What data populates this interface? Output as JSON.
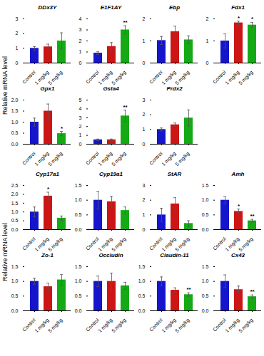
{
  "chart_data": [
    {
      "type": "bar",
      "title": "DDx3Y",
      "ylabel": "Relative mRNA level",
      "categories": [
        "Control",
        "1 mg/kg",
        "5 mg/kg"
      ],
      "values": [
        1.0,
        1.1,
        1.5
      ],
      "errors": [
        0.12,
        0.18,
        0.55
      ],
      "colors": [
        "#1515cc",
        "#cc1515",
        "#15aa15"
      ],
      "ylim": [
        0,
        3
      ],
      "yticks": [
        0,
        1,
        2,
        3
      ],
      "annotations": []
    },
    {
      "type": "bar",
      "title": "E1F1AY",
      "categories": [
        "Control",
        "1 mg/kg",
        "5 mg/kg"
      ],
      "values": [
        0.9,
        1.5,
        3.0
      ],
      "errors": [
        0.12,
        0.35,
        0.38
      ],
      "colors": [
        "#1515cc",
        "#cc1515",
        "#15aa15"
      ],
      "ylim": [
        0,
        4
      ],
      "yticks": [
        0,
        1,
        2,
        3,
        4
      ],
      "annotations": [
        {
          "category": "5 mg/kg",
          "text": "**"
        }
      ]
    },
    {
      "type": "bar",
      "title": "Ebp",
      "categories": [
        "Control",
        "1 mg/kg",
        "5 mg/kg"
      ],
      "values": [
        1.02,
        1.42,
        1.05
      ],
      "errors": [
        0.18,
        0.25,
        0.18
      ],
      "colors": [
        "#1515cc",
        "#cc1515",
        "#15aa15"
      ],
      "ylim": [
        0,
        2
      ],
      "yticks": [
        0,
        1,
        2
      ],
      "annotations": []
    },
    {
      "type": "bar",
      "title": "Fdx1",
      "categories": [
        "Control",
        "1 mg/kg",
        "5 mg/kg"
      ],
      "values": [
        1.0,
        1.82,
        1.72
      ],
      "errors": [
        0.32,
        0.08,
        0.12
      ],
      "colors": [
        "#1515cc",
        "#cc1515",
        "#15aa15"
      ],
      "ylim": [
        0,
        2
      ],
      "yticks": [
        0,
        1,
        2
      ],
      "annotations": [
        {
          "category": "1 mg/kg",
          "text": "*"
        },
        {
          "category": "5 mg/kg",
          "text": "*"
        }
      ]
    },
    {
      "type": "bar",
      "title": "Gpx1",
      "categories": [
        "Control",
        "1 mg/kg",
        "5 mg/kg"
      ],
      "values": [
        1.0,
        1.5,
        0.48
      ],
      "errors": [
        0.18,
        0.32,
        0.1
      ],
      "colors": [
        "#1515cc",
        "#cc1515",
        "#15aa15"
      ],
      "ylim": [
        0,
        2
      ],
      "yticks": [
        {
          "value": 0,
          "label": "0.0"
        },
        0.5,
        {
          "value": 1.0,
          "label": "1.0"
        },
        1.5,
        {
          "value": 2.0,
          "label": "2.0"
        }
      ],
      "annotations": [
        {
          "category": "5 mg/kg",
          "text": "*"
        }
      ]
    },
    {
      "type": "bar",
      "title": "Gsta4",
      "categories": [
        "Control",
        "1 mg/kg",
        "5 mg/kg"
      ],
      "values": [
        0.5,
        0.5,
        3.2
      ],
      "errors": [
        0.08,
        0.08,
        0.65
      ],
      "colors": [
        "#1515cc",
        "#cc1515",
        "#15aa15"
      ],
      "ylim": [
        0,
        5
      ],
      "yticks": [
        0,
        1,
        2,
        3,
        4,
        5
      ],
      "annotations": [
        {
          "category": "5 mg/kg",
          "text": "**"
        }
      ]
    },
    {
      "type": "bar",
      "title": "Prdx2",
      "categories": [
        "Control",
        "1 mg/kg",
        "5 mg/kg"
      ],
      "values": [
        1.0,
        1.32,
        1.78
      ],
      "errors": [
        0.1,
        0.12,
        0.55
      ],
      "colors": [
        "#1515cc",
        "#cc1515",
        "#15aa15"
      ],
      "ylim": [
        0,
        3
      ],
      "yticks": [
        0,
        1,
        2,
        3
      ],
      "annotations": []
    },
    {
      "type": "bar",
      "title": "Cyp17a1",
      "ylabel": "Relative mRNA level",
      "categories": [
        "Control",
        "1 mg/kg",
        "5 mg/kg"
      ],
      "values": [
        1.0,
        1.9,
        0.65
      ],
      "errors": [
        0.28,
        0.22,
        0.12
      ],
      "colors": [
        "#1515cc",
        "#cc1515",
        "#15aa15"
      ],
      "ylim": [
        0,
        2.5
      ],
      "yticks": [
        {
          "value": 0,
          "label": "0.0"
        },
        0.5,
        {
          "value": 1.0,
          "label": "1.0"
        },
        1.5,
        {
          "value": 2.0,
          "label": "2.0"
        },
        2.5
      ],
      "annotations": [
        {
          "category": "1 mg/kg",
          "text": "*"
        }
      ]
    },
    {
      "type": "bar",
      "title": "Cyp19a1",
      "categories": [
        "Control",
        "1 mg/kg",
        "5 mg/kg"
      ],
      "values": [
        1.0,
        0.95,
        0.65
      ],
      "errors": [
        0.3,
        0.18,
        0.12
      ],
      "colors": [
        "#1515cc",
        "#cc1515",
        "#15aa15"
      ],
      "ylim": [
        0,
        1.5
      ],
      "yticks": [
        {
          "value": 0,
          "label": "0.0"
        },
        0.5,
        {
          "value": 1.0,
          "label": "1.0"
        },
        1.5
      ],
      "annotations": []
    },
    {
      "type": "bar",
      "title": "StAR",
      "categories": [
        "Control",
        "1 mg/kg",
        "5 mg/kg"
      ],
      "values": [
        1.0,
        1.75,
        0.42
      ],
      "errors": [
        0.45,
        0.42,
        0.18
      ],
      "colors": [
        "#1515cc",
        "#cc1515",
        "#15aa15"
      ],
      "ylim": [
        0,
        3
      ],
      "yticks": [
        0,
        1,
        2,
        3
      ],
      "annotations": []
    },
    {
      "type": "bar",
      "title": "Amh",
      "categories": [
        "Control",
        "1 mg/kg",
        "5 mg/kg"
      ],
      "values": [
        1.0,
        0.62,
        0.3
      ],
      "errors": [
        0.12,
        0.08,
        0.05
      ],
      "colors": [
        "#1515cc",
        "#cc1515",
        "#15aa15"
      ],
      "ylim": [
        0,
        1.5
      ],
      "yticks": [
        {
          "value": 0,
          "label": "0.0"
        },
        0.5,
        {
          "value": 1.0,
          "label": "1.0"
        },
        1.5
      ],
      "annotations": [
        {
          "category": "1 mg/kg",
          "text": "*"
        },
        {
          "category": "5 mg/kg",
          "text": "**"
        }
      ]
    },
    {
      "type": "bar",
      "title": "Zo-1",
      "categories": [
        "Control",
        "1 mg/kg",
        "5 mg/kg"
      ],
      "values": [
        1.0,
        0.82,
        1.05
      ],
      "errors": [
        0.1,
        0.12,
        0.18
      ],
      "colors": [
        "#1515cc",
        "#cc1515",
        "#15aa15"
      ],
      "ylim": [
        0,
        1.5
      ],
      "yticks": [
        {
          "value": 0,
          "label": "0.0"
        },
        0.5,
        {
          "value": 1.0,
          "label": "1.0"
        },
        1.5
      ],
      "annotations": []
    },
    {
      "type": "bar",
      "title": "Occludin",
      "categories": [
        "Control",
        "1 mg/kg",
        "5 mg/kg"
      ],
      "values": [
        1.0,
        1.0,
        0.85
      ],
      "errors": [
        0.18,
        0.28,
        0.12
      ],
      "colors": [
        "#1515cc",
        "#cc1515",
        "#15aa15"
      ],
      "ylim": [
        0,
        1.5
      ],
      "yticks": [
        {
          "value": 0,
          "label": "0.0"
        },
        0.5,
        {
          "value": 1.0,
          "label": "1.0"
        },
        1.5
      ],
      "annotations": []
    },
    {
      "type": "bar",
      "title": "Claudin-11",
      "categories": [
        "Control",
        "1 mg/kg",
        "5 mg/kg"
      ],
      "values": [
        1.0,
        0.7,
        0.55
      ],
      "errors": [
        0.15,
        0.08,
        0.06
      ],
      "colors": [
        "#1515cc",
        "#cc1515",
        "#15aa15"
      ],
      "ylim": [
        0,
        1.5
      ],
      "yticks": [
        {
          "value": 0,
          "label": "0.0"
        },
        0.5,
        {
          "value": 1.0,
          "label": "1.0"
        },
        1.5
      ],
      "annotations": [
        {
          "category": "5 mg/kg",
          "text": "**"
        }
      ]
    },
    {
      "type": "bar",
      "title": "Cx43",
      "categories": [
        "Control",
        "1 mg/kg",
        "5 mg/kg"
      ],
      "values": [
        1.0,
        0.72,
        0.48
      ],
      "errors": [
        0.22,
        0.12,
        0.06
      ],
      "colors": [
        "#1515cc",
        "#cc1515",
        "#15aa15"
      ],
      "ylim": [
        0,
        1.5
      ],
      "yticks": [
        {
          "value": 0,
          "label": "0.0"
        },
        0.5,
        {
          "value": 1.0,
          "label": "1.0"
        },
        1.5
      ],
      "annotations": [
        {
          "category": "5 mg/kg",
          "text": "**"
        }
      ]
    }
  ]
}
